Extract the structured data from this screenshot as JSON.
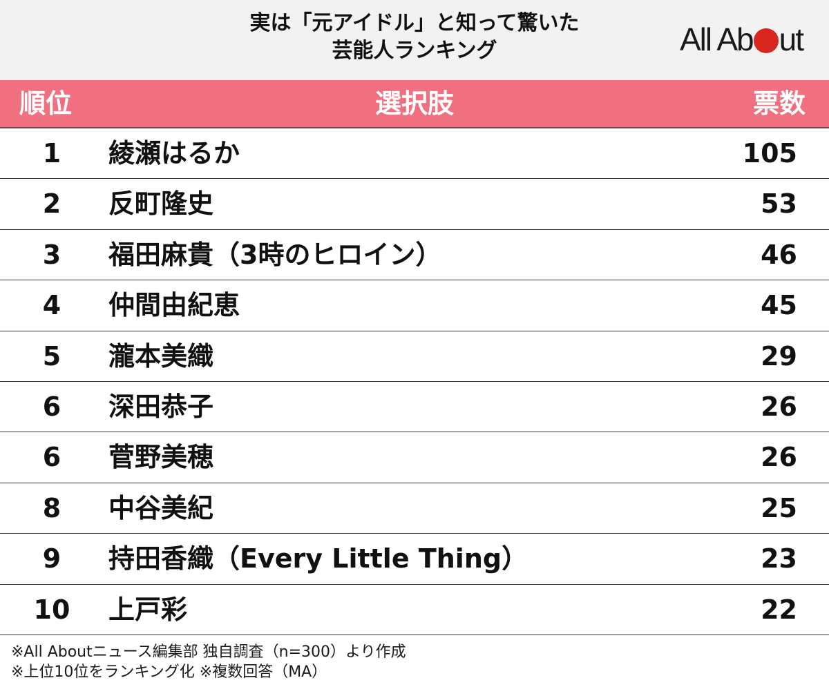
{
  "title": {
    "line1": "実は「元アイドル」と知って驚いた",
    "line2": "芸能人ランキング"
  },
  "logo": {
    "left": "All Ab",
    "right": "ut"
  },
  "colors": {
    "header_bg": "#f0707f",
    "logo_dot": "#d7261e",
    "top_bg": "#f2f2f2"
  },
  "chart_data": {
    "type": "table",
    "columns": [
      "順位",
      "選択肢",
      "票数"
    ],
    "rows": [
      {
        "rank": "1",
        "name": "綾瀬はるか",
        "votes": 105
      },
      {
        "rank": "2",
        "name": "反町隆史",
        "votes": 53
      },
      {
        "rank": "3",
        "name": "福田麻貴（3時のヒロイン）",
        "votes": 46
      },
      {
        "rank": "4",
        "name": "仲間由紀恵",
        "votes": 45
      },
      {
        "rank": "5",
        "name": "瀧本美織",
        "votes": 29
      },
      {
        "rank": "6",
        "name": "深田恭子",
        "votes": 26
      },
      {
        "rank": "6",
        "name": "菅野美穂",
        "votes": 26
      },
      {
        "rank": "8",
        "name": "中谷美紀",
        "votes": 25
      },
      {
        "rank": "9",
        "name": "持田香織（Every Little Thing）",
        "votes": 23
      },
      {
        "rank": "10",
        "name": "上戸彩",
        "votes": 22
      }
    ]
  },
  "footer": {
    "line1": "※All Aboutニュース編集部 独自調査（n=300）より作成",
    "line2": "※上位10位をランキング化 ※複数回答（MA）"
  }
}
